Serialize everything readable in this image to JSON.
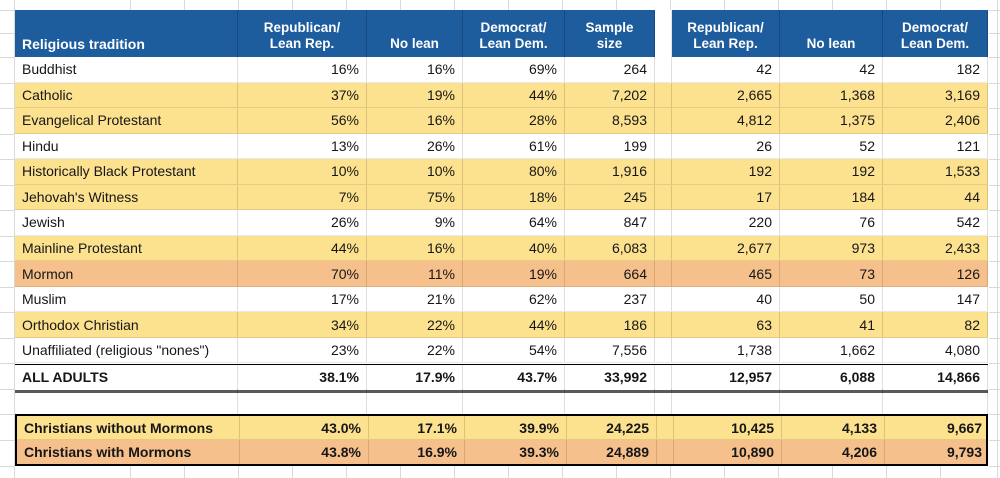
{
  "colors": {
    "header_bg": "#1D5C9D",
    "row_yellow": "#FCE18F",
    "row_orange": "#F5C08C",
    "total_border": "#595959",
    "box_border": "#000000"
  },
  "table": {
    "header": {
      "tradition_label": "Religious tradition",
      "columns": [
        "Republican/\nLean Rep.",
        "No lean",
        "Democrat/\nLean Dem.",
        "Sample\nsize",
        "Republican/\nLean Rep.",
        "No lean",
        "Democrat/\nLean Dem."
      ]
    },
    "rows": [
      {
        "name": "Buddhist",
        "highlight": "white",
        "values": [
          "16%",
          "16%",
          "69%",
          "264",
          "42",
          "42",
          "182"
        ]
      },
      {
        "name": "Catholic",
        "highlight": "yellow",
        "values": [
          "37%",
          "19%",
          "44%",
          "7,202",
          "2,665",
          "1,368",
          "3,169"
        ]
      },
      {
        "name": "Evangelical Protestant",
        "highlight": "yellow",
        "values": [
          "56%",
          "16%",
          "28%",
          "8,593",
          "4,812",
          "1,375",
          "2,406"
        ]
      },
      {
        "name": "Hindu",
        "highlight": "white",
        "values": [
          "13%",
          "26%",
          "61%",
          "199",
          "26",
          "52",
          "121"
        ]
      },
      {
        "name": "Historically Black Protestant",
        "highlight": "yellow",
        "values": [
          "10%",
          "10%",
          "80%",
          "1,916",
          "192",
          "192",
          "1,533"
        ]
      },
      {
        "name": "Jehovah's Witness",
        "highlight": "yellow",
        "values": [
          "7%",
          "75%",
          "18%",
          "245",
          "17",
          "184",
          "44"
        ]
      },
      {
        "name": "Jewish",
        "highlight": "white",
        "values": [
          "26%",
          "9%",
          "64%",
          "847",
          "220",
          "76",
          "542"
        ]
      },
      {
        "name": "Mainline Protestant",
        "highlight": "yellow",
        "values": [
          "44%",
          "16%",
          "40%",
          "6,083",
          "2,677",
          "973",
          "2,433"
        ]
      },
      {
        "name": "Mormon",
        "highlight": "orange",
        "values": [
          "70%",
          "11%",
          "19%",
          "664",
          "465",
          "73",
          "126"
        ]
      },
      {
        "name": "Muslim",
        "highlight": "white",
        "values": [
          "17%",
          "21%",
          "62%",
          "237",
          "40",
          "50",
          "147"
        ]
      },
      {
        "name": "Orthodox Christian",
        "highlight": "yellow",
        "values": [
          "34%",
          "22%",
          "44%",
          "186",
          "63",
          "41",
          "82"
        ]
      },
      {
        "name": "Unaffiliated (religious \"nones\")",
        "highlight": "white",
        "values": [
          "23%",
          "22%",
          "54%",
          "7,556",
          "1,738",
          "1,662",
          "4,080"
        ]
      }
    ],
    "total_row": {
      "name": "ALL ADULTS",
      "highlight": "white",
      "values": [
        "38.1%",
        "17.9%",
        "43.7%",
        "33,992",
        "12,957",
        "6,088",
        "14,866"
      ]
    },
    "summary_rows": [
      {
        "name": "Christians without Mormons",
        "highlight": "yellow",
        "values": [
          "43.0%",
          "17.1%",
          "39.9%",
          "24,225",
          "10,425",
          "4,133",
          "9,667"
        ]
      },
      {
        "name": "Christians with Mormons",
        "highlight": "orange",
        "values": [
          "43.8%",
          "16.9%",
          "39.3%",
          "24,889",
          "10,890",
          "4,206",
          "9,793"
        ]
      }
    ]
  }
}
